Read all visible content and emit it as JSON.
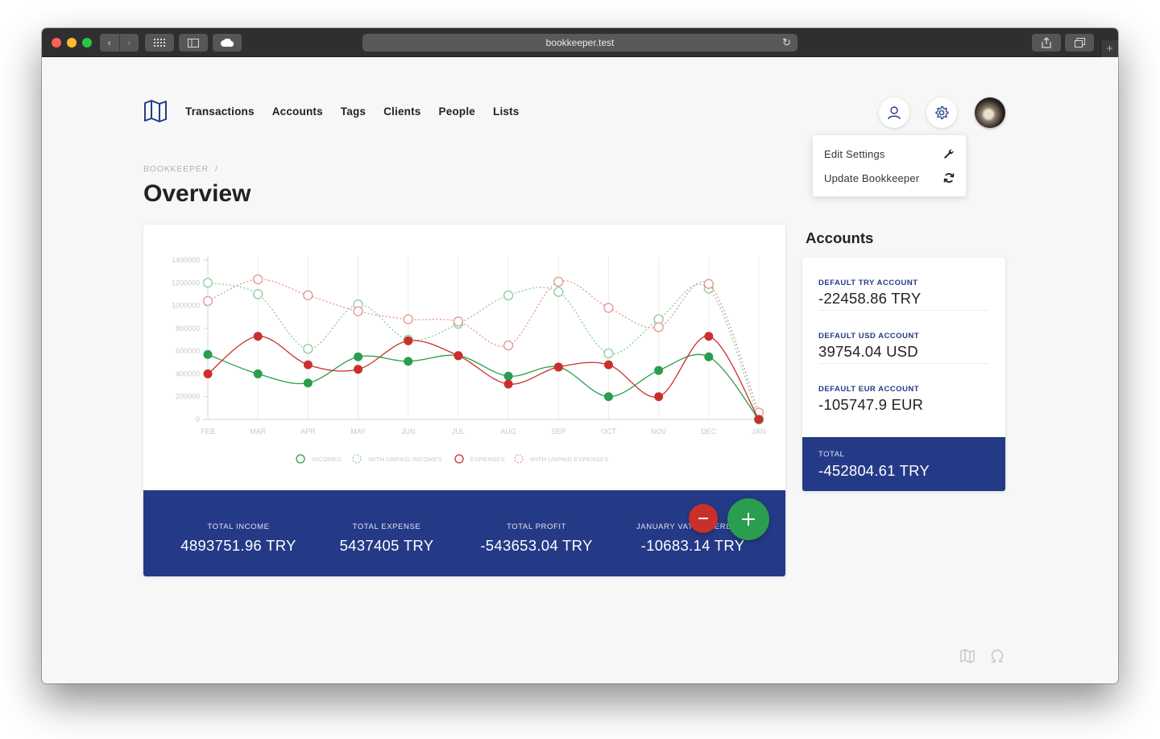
{
  "browser": {
    "url": "bookkeeper.test"
  },
  "nav": {
    "items": [
      "Transactions",
      "Accounts",
      "Tags",
      "Clients",
      "People",
      "Lists"
    ]
  },
  "dropdown": {
    "items": [
      {
        "label": "Edit Settings",
        "icon": "wrench-icon"
      },
      {
        "label": "Update Bookkeeper",
        "icon": "sync-icon"
      }
    ]
  },
  "breadcrumb": {
    "root": "BOOKKEEPER",
    "sep": "/"
  },
  "page": {
    "title": "Overview"
  },
  "colors": {
    "primary": "#253a86",
    "income": "#2a9d4e",
    "expense": "#c9302c",
    "income_light": "#8fd0a0",
    "expense_light": "#e59a97"
  },
  "chart_data": {
    "type": "line",
    "categories": [
      "FEB",
      "MAR",
      "APR",
      "MAY",
      "JUN",
      "JUL",
      "AUG",
      "SEP",
      "OCT",
      "NOV",
      "DEC",
      "JAN"
    ],
    "ylim": [
      0,
      1400000
    ],
    "yticks": [
      "0",
      "200000",
      "400000",
      "600000",
      "800000",
      "1000000",
      "1200000",
      "1400000"
    ],
    "series": [
      {
        "name": "INCOMES",
        "style": "solid-filled",
        "color": "#2a9d4e",
        "values": [
          570000,
          400000,
          320000,
          550000,
          510000,
          560000,
          380000,
          460000,
          200000,
          430000,
          550000,
          0
        ]
      },
      {
        "name": "WITH UNPAID INCOMES",
        "style": "dotted-hollow",
        "color": "#8fd0a0",
        "values": [
          1200000,
          1100000,
          620000,
          1010000,
          700000,
          840000,
          1090000,
          1120000,
          580000,
          880000,
          1150000,
          0
        ]
      },
      {
        "name": "EXPENSES",
        "style": "solid-filled",
        "color": "#c9302c",
        "values": [
          400000,
          730000,
          480000,
          440000,
          690000,
          560000,
          310000,
          460000,
          480000,
          200000,
          730000,
          0
        ]
      },
      {
        "name": "WITH UNPAID EXPENSES",
        "style": "dotted-hollow",
        "color": "#e59a97",
        "values": [
          1040000,
          1230000,
          1090000,
          950000,
          880000,
          860000,
          650000,
          1210000,
          980000,
          810000,
          1190000,
          60000
        ]
      }
    ],
    "legend_position": "bottom"
  },
  "stats": [
    {
      "label": "TOTAL INCOME",
      "value": "4893751.96 TRY"
    },
    {
      "label": "TOTAL EXPENSE",
      "value": "5437405 TRY"
    },
    {
      "label": "TOTAL PROFIT",
      "value": "-543653.04 TRY"
    },
    {
      "label": "JANUARY VAT DIFFERENCE",
      "value": "-10683.14 TRY"
    }
  ],
  "accounts": {
    "title": "Accounts",
    "items": [
      {
        "label": "DEFAULT TRY ACCOUNT",
        "value": "-22458.86 TRY"
      },
      {
        "label": "DEFAULT USD ACCOUNT",
        "value": "39754.04 USD"
      },
      {
        "label": "DEFAULT EUR ACCOUNT",
        "value": "-105747.9 EUR"
      }
    ],
    "total": {
      "label": "TOTAL",
      "value": "-452804.61 TRY"
    }
  }
}
